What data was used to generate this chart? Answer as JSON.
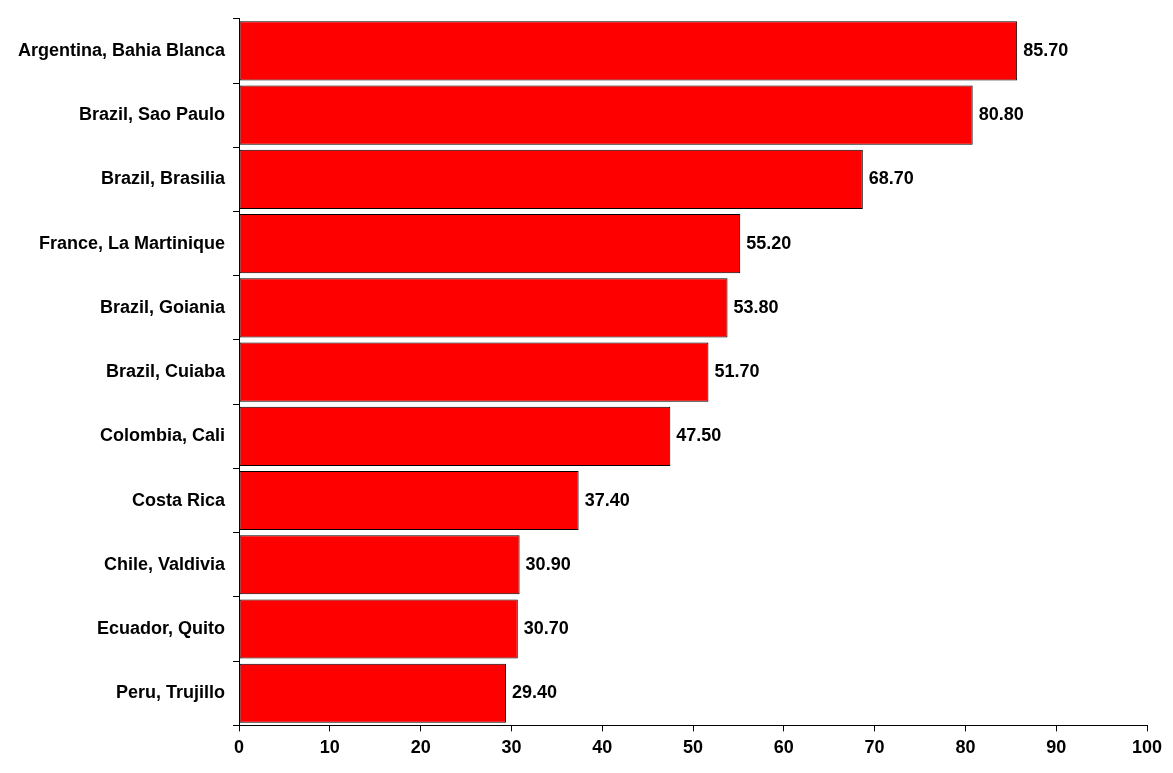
{
  "chart_data": {
    "type": "bar",
    "orientation": "horizontal",
    "categories": [
      "Argentina, Bahia Blanca",
      "Brazil, Sao Paulo",
      "Brazil, Brasilia",
      "France, La Martinique",
      "Brazil, Goiania",
      "Brazil, Cuiaba",
      "Colombia, Cali",
      "Costa Rica",
      "Chile, Valdivia",
      "Ecuador, Quito",
      "Peru, Trujillo"
    ],
    "values": [
      85.7,
      80.8,
      68.7,
      55.2,
      53.8,
      51.7,
      47.5,
      37.4,
      30.9,
      30.7,
      29.4
    ],
    "value_labels": [
      "85.70",
      "80.80",
      "68.70",
      "55.20",
      "53.80",
      "51.70",
      "47.50",
      "37.40",
      "30.90",
      "30.70",
      "29.40"
    ],
    "color": "#ff0000",
    "xlim": [
      0,
      100
    ],
    "xticks": [
      0,
      10,
      20,
      30,
      40,
      50,
      60,
      70,
      80,
      90,
      100
    ],
    "grid": false,
    "legend": false
  }
}
